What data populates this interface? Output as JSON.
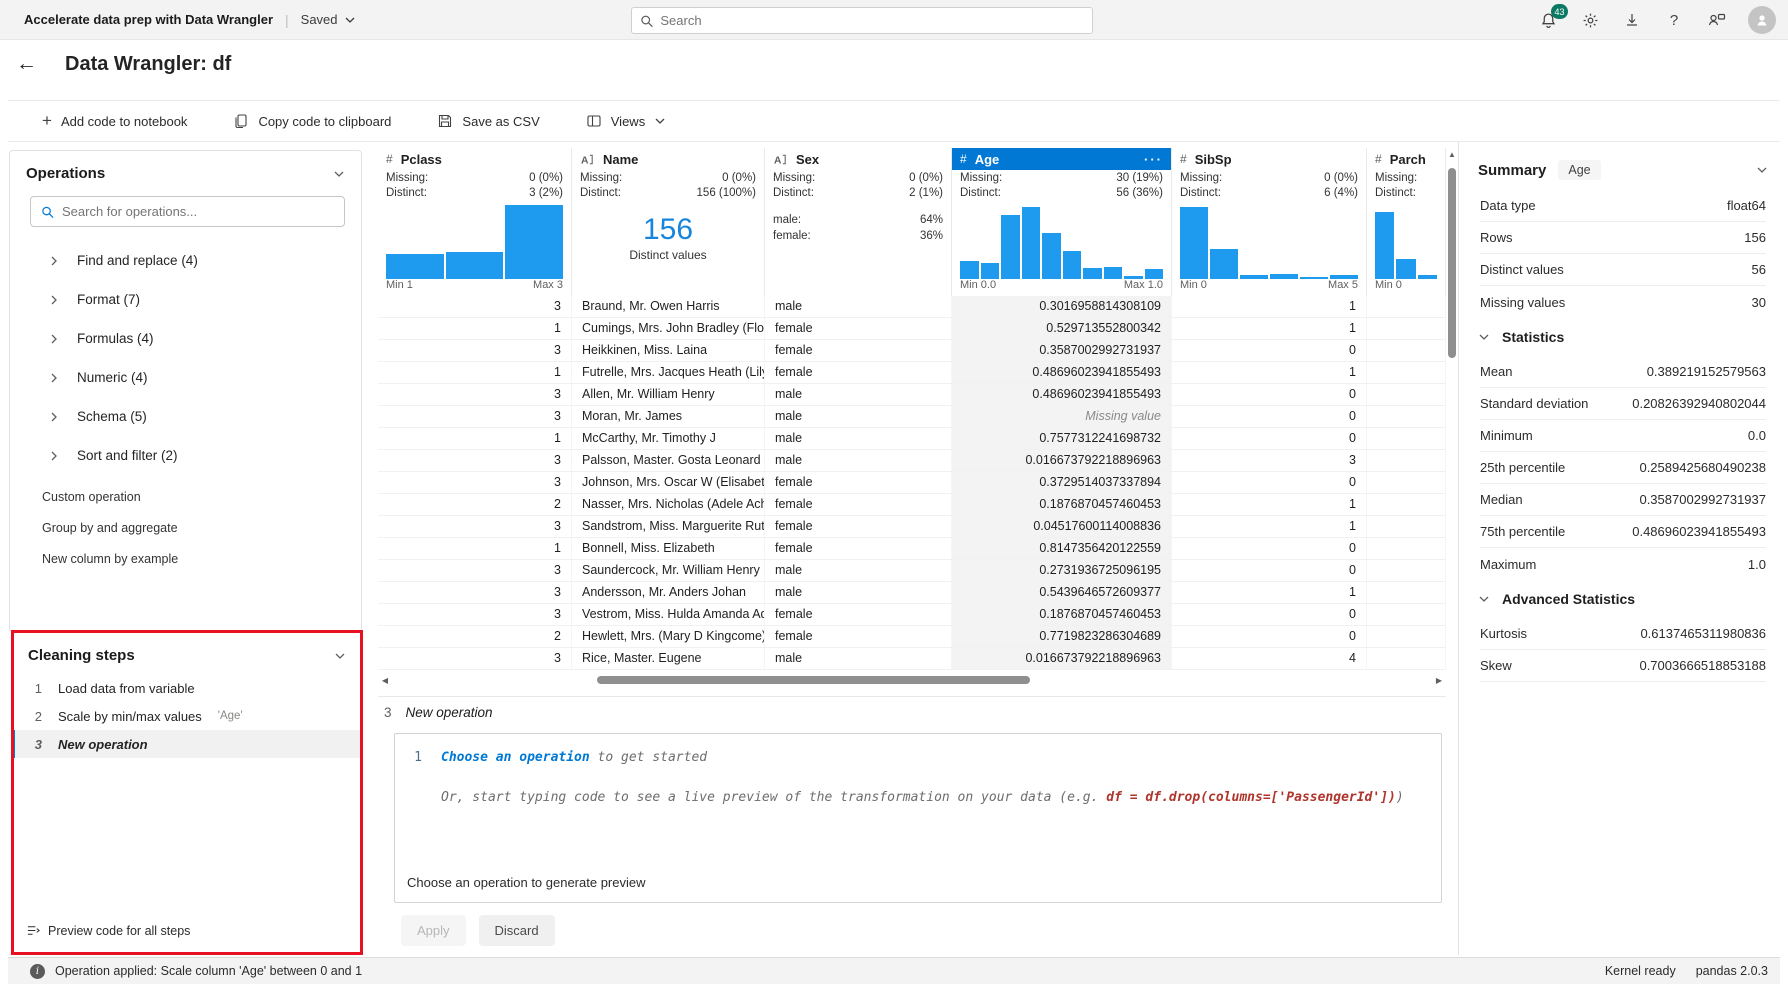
{
  "topbar": {
    "app_title": "Accelerate data prep with Data Wrangler",
    "saved_label": "Saved",
    "search_placeholder": "Search",
    "notification_count": "43"
  },
  "header": {
    "title": "Data Wrangler: df"
  },
  "toolbar": {
    "add_code": "Add code to notebook",
    "copy_code": "Copy code to clipboard",
    "save_csv": "Save as CSV",
    "views": "Views"
  },
  "operations": {
    "title": "Operations",
    "search_placeholder": "Search for operations...",
    "groups": [
      "Find and replace (4)",
      "Format (7)",
      "Formulas (4)",
      "Numeric (4)",
      "Schema (5)",
      "Sort and filter (2)"
    ],
    "extra_items": [
      "Custom operation",
      "Group by and aggregate",
      "New column by example"
    ]
  },
  "cleaning_steps": {
    "title": "Cleaning steps",
    "steps": [
      {
        "num": "1",
        "label": "Load data from variable",
        "detail": ""
      },
      {
        "num": "2",
        "label": "Scale by min/max values",
        "detail": "'Age'"
      },
      {
        "num": "3",
        "label": "New operation",
        "detail": ""
      }
    ],
    "preview_all": "Preview code for all steps"
  },
  "grid": {
    "columns": [
      {
        "name": "Pclass",
        "type": "numeric",
        "missing_label": "Missing:",
        "missing": "0 (0%)",
        "distinct_label": "Distinct:",
        "distinct": "3 (2%)",
        "min": "Min 1",
        "max": "Max 3",
        "histogram": [
          0.34,
          0.36,
          1.0
        ]
      },
      {
        "name": "Name",
        "type": "text",
        "missing_label": "Missing:",
        "missing": "0 (0%)",
        "distinct_label": "Distinct:",
        "distinct": "156 (100%)",
        "big_value": "156",
        "big_caption": "Distinct values"
      },
      {
        "name": "Sex",
        "type": "text",
        "missing_label": "Missing:",
        "missing": "0 (0%)",
        "distinct_label": "Distinct:",
        "distinct": "2 (1%)",
        "categories": [
          {
            "label": "male:",
            "value": "64%"
          },
          {
            "label": "female:",
            "value": "36%"
          }
        ]
      },
      {
        "name": "Age",
        "type": "numeric",
        "selected": true,
        "menu": "···",
        "missing_label": "Missing:",
        "missing": "30 (19%)",
        "distinct_label": "Distinct:",
        "distinct": "56 (36%)",
        "min": "Min 0.0",
        "max": "Max 1.0",
        "histogram": [
          0.24,
          0.21,
          0.86,
          0.97,
          0.62,
          0.38,
          0.15,
          0.16,
          0.04,
          0.13
        ]
      },
      {
        "name": "SibSp",
        "type": "numeric",
        "missing_label": "Missing:",
        "missing": "0 (0%)",
        "distinct_label": "Distinct:",
        "distinct": "6 (4%)",
        "min": "Min 0",
        "max": "Max 5",
        "histogram": [
          0.97,
          0.4,
          0.05,
          0.07,
          0.03,
          0.05
        ]
      },
      {
        "name": "Parch",
        "type": "numeric",
        "missing_label": "Missing:",
        "distinct_label": "Distinct:",
        "min": "Min 0",
        "histogram": [
          0.9,
          0.27,
          0.05
        ]
      }
    ],
    "rows": [
      {
        "pclass": "3",
        "name": "Braund, Mr. Owen Harris",
        "sex": "male",
        "age": "0.3016958814308109",
        "sibsp": "1",
        "parch": ""
      },
      {
        "pclass": "1",
        "name": "Cumings, Mrs. John Bradley (Florenc",
        "sex": "female",
        "age": "0.529713552800342",
        "sibsp": "1",
        "parch": ""
      },
      {
        "pclass": "3",
        "name": "Heikkinen, Miss. Laina",
        "sex": "female",
        "age": "0.3587002992731937",
        "sibsp": "0",
        "parch": ""
      },
      {
        "pclass": "1",
        "name": "Futrelle, Mrs. Jacques Heath (Lily Ma",
        "sex": "female",
        "age": "0.48696023941855493",
        "sibsp": "1",
        "parch": ""
      },
      {
        "pclass": "3",
        "name": "Allen, Mr. William Henry",
        "sex": "male",
        "age": "0.48696023941855493",
        "sibsp": "0",
        "parch": ""
      },
      {
        "pclass": "3",
        "name": "Moran, Mr. James",
        "sex": "male",
        "age": "Missing value",
        "sibsp": "0",
        "parch": ""
      },
      {
        "pclass": "1",
        "name": "McCarthy, Mr. Timothy J",
        "sex": "male",
        "age": "0.7577312241698732",
        "sibsp": "0",
        "parch": ""
      },
      {
        "pclass": "3",
        "name": "Palsson, Master. Gosta Leonard",
        "sex": "male",
        "age": "0.016673792218896963",
        "sibsp": "3",
        "parch": ""
      },
      {
        "pclass": "3",
        "name": "Johnson, Mrs. Oscar W (Elisabeth Vil",
        "sex": "female",
        "age": "0.3729514037337894",
        "sibsp": "0",
        "parch": ""
      },
      {
        "pclass": "2",
        "name": "Nasser, Mrs. Nicholas (Adele Achem",
        "sex": "female",
        "age": "0.1876870457460453",
        "sibsp": "1",
        "parch": ""
      },
      {
        "pclass": "3",
        "name": "Sandstrom, Miss. Marguerite Rut",
        "sex": "female",
        "age": "0.04517600114008836",
        "sibsp": "1",
        "parch": ""
      },
      {
        "pclass": "1",
        "name": "Bonnell, Miss. Elizabeth",
        "sex": "female",
        "age": "0.8147356420122559",
        "sibsp": "0",
        "parch": ""
      },
      {
        "pclass": "3",
        "name": "Saundercock, Mr. William Henry",
        "sex": "male",
        "age": "0.2731936725096195",
        "sibsp": "0",
        "parch": ""
      },
      {
        "pclass": "3",
        "name": "Andersson, Mr. Anders Johan",
        "sex": "male",
        "age": "0.5439646572609377",
        "sibsp": "1",
        "parch": ""
      },
      {
        "pclass": "3",
        "name": "Vestrom, Miss. Hulda Amanda Adolf",
        "sex": "female",
        "age": "0.1876870457460453",
        "sibsp": "0",
        "parch": ""
      },
      {
        "pclass": "2",
        "name": "Hewlett, Mrs. (Mary D Kingcome)",
        "sex": "female",
        "age": "0.7719823286304689",
        "sibsp": "0",
        "parch": ""
      },
      {
        "pclass": "3",
        "name": "Rice, Master. Eugene",
        "sex": "male",
        "age": "0.016673792218896963",
        "sibsp": "4",
        "parch": ""
      }
    ]
  },
  "summary": {
    "title": "Summary",
    "badge": "Age",
    "fields": [
      {
        "label": "Data type",
        "value": "float64"
      },
      {
        "label": "Rows",
        "value": "156"
      },
      {
        "label": "Distinct values",
        "value": "56"
      },
      {
        "label": "Missing values",
        "value": "30"
      }
    ],
    "statistics": {
      "title": "Statistics",
      "fields": [
        {
          "label": "Mean",
          "value": "0.389219152579563"
        },
        {
          "label": "Standard deviation",
          "value": "0.20826392940802044"
        },
        {
          "label": "Minimum",
          "value": "0.0"
        },
        {
          "label": "25th percentile",
          "value": "0.2589425680490238"
        },
        {
          "label": "Median",
          "value": "0.3587002992731937"
        },
        {
          "label": "75th percentile",
          "value": "0.48696023941855493"
        },
        {
          "label": "Maximum",
          "value": "1.0"
        }
      ]
    },
    "advanced": {
      "title": "Advanced Statistics",
      "fields": [
        {
          "label": "Kurtosis",
          "value": "0.6137465311980836"
        },
        {
          "label": "Skew",
          "value": "0.7003666518853188"
        }
      ]
    }
  },
  "editor": {
    "step_num": "3",
    "step_label": "New operation",
    "line_number": "1",
    "line1_link": "Choose an operation",
    "line1_rest": " to get started",
    "line2_prefix": "Or, start typing code to see a live preview of the transformation on your data (e.g. ",
    "line2_code": "df = df.drop(columns=['PassengerId'])",
    "line2_suffix": ")",
    "status": "Choose an operation to generate preview",
    "apply_label": "Apply",
    "discard_label": "Discard"
  },
  "statusbar": {
    "message": "Operation applied: Scale column 'Age' between 0 and 1",
    "kernel": "Kernel ready",
    "pandas": "pandas 2.0.3"
  },
  "colors": {
    "accent": "#0078d4",
    "histogram_bar": "#1e9bef",
    "annotation_red": "#e81123",
    "badge_teal": "#0a7a64",
    "big_value_blue": "#1585dd",
    "code_red": "#b0342c"
  }
}
